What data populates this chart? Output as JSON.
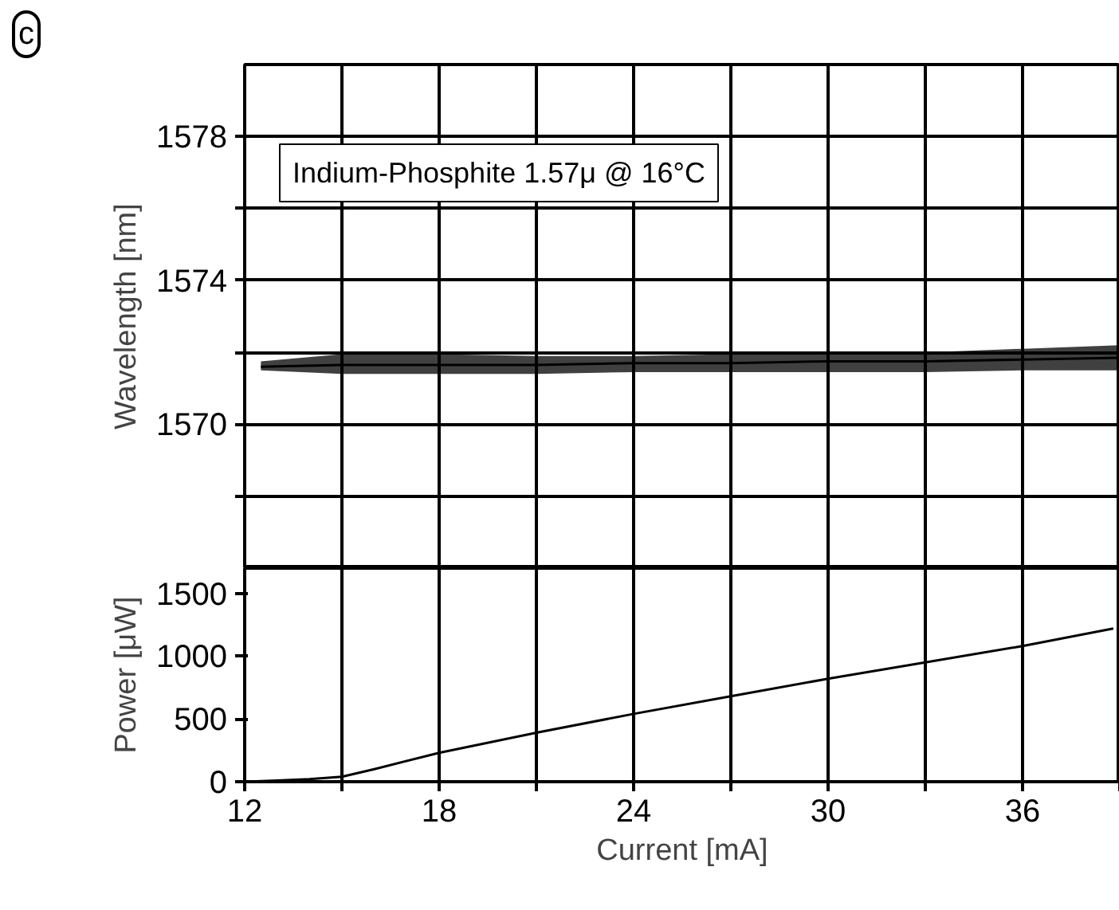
{
  "chart_data": [
    {
      "type": "line",
      "ylabel": "Wavelength [nm]",
      "annotations": [
        "c",
        "Indium-Phosphite 1.57μ @ 16°C"
      ],
      "x": [
        12.5,
        15,
        18,
        21,
        24,
        27,
        30,
        33,
        36,
        39
      ],
      "series": [
        {
          "color": "#000000",
          "values": [
            1571.6,
            1571.65,
            1571.65,
            1571.65,
            1571.7,
            1571.7,
            1571.75,
            1571.75,
            1571.8,
            1571.85
          ],
          "lower": [
            1571.5,
            1571.4,
            1571.4,
            1571.4,
            1571.45,
            1571.45,
            1571.45,
            1571.45,
            1571.5,
            1571.5
          ],
          "upper": [
            1571.75,
            1571.95,
            1571.95,
            1571.9,
            1571.9,
            1571.95,
            1572.0,
            1572.0,
            1572.1,
            1572.2
          ]
        }
      ],
      "xlim": [
        12,
        39
      ],
      "xticks": [
        12,
        {
          "value": 15,
          "label": null
        },
        18,
        {
          "value": 21,
          "label": null
        },
        24,
        {
          "value": 27,
          "label": null
        },
        30,
        {
          "value": 33,
          "label": null
        },
        36,
        {
          "value": 39,
          "label": null
        }
      ],
      "ylim": [
        1566,
        1580
      ],
      "yticks": [
        {
          "value": 1568,
          "label": null
        },
        1570,
        {
          "value": 1572,
          "label": null
        },
        1574,
        {
          "value": 1576,
          "label": null
        },
        1578
      ],
      "grid": true,
      "tick_labels": "y"
    },
    {
      "type": "line",
      "xlabel": "Current [mA]",
      "ylabel": "Power [μW]",
      "x": [
        12,
        13,
        14,
        15,
        16,
        18,
        21,
        24,
        27,
        30,
        33,
        36,
        38.8
      ],
      "series": [
        {
          "color": "#000000",
          "values": [
            0,
            10,
            20,
            40,
            100,
            230,
            390,
            540,
            680,
            820,
            950,
            1080,
            1220
          ]
        }
      ],
      "xlim": [
        12,
        39
      ],
      "xticks": [
        12,
        {
          "value": 15,
          "label": null
        },
        18,
        {
          "value": 21,
          "label": null
        },
        24,
        {
          "value": 27,
          "label": null
        },
        30,
        {
          "value": 33,
          "label": null
        },
        36,
        {
          "value": 39,
          "label": null
        }
      ],
      "ylim": [
        0,
        1700
      ],
      "yticks": [
        0,
        500,
        1000,
        1500
      ],
      "grid": "x"
    }
  ]
}
